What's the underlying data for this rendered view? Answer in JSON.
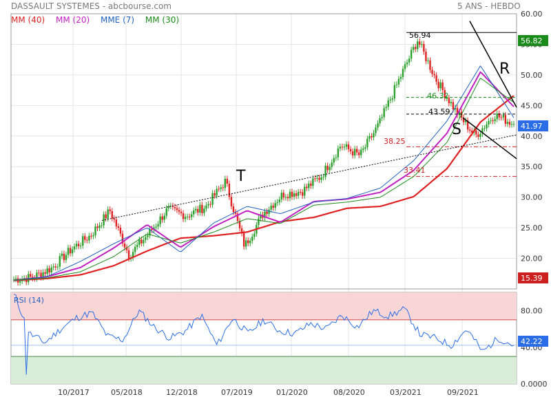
{
  "header": {
    "title": "DASSAULT SYSTEMES - abcbourse.com",
    "period": "5 ANS - HEBDO"
  },
  "legend": [
    {
      "label": "MM (40)",
      "color": "#e02020"
    },
    {
      "label": "MM (20)",
      "color": "#c020c0"
    },
    {
      "label": "MME (7)",
      "color": "#1f5fbf"
    },
    {
      "label": "MM (30)",
      "color": "#1a8a1a"
    }
  ],
  "colors": {
    "up": "#2ca02c",
    "down": "#e02020",
    "price_badge": "#2a6de6",
    "trend": "#000000",
    "rsi_line": "#2a6de6",
    "overbought_zone": "#f9d6d6",
    "oversold_zone": "#d8ecd8"
  },
  "chart_data": [
    {
      "type": "candlestick",
      "title": "DASSAULT SYSTEMES",
      "ylim": [
        15,
        60
      ],
      "y_ticks": [
        "20.00",
        "25.00",
        "30.00",
        "35.00",
        "40.00",
        "45.00",
        "50.00",
        "55.00",
        "60.00"
      ],
      "x_ticks": [
        "10/2017",
        "05/2018",
        "12/2018",
        "07/2019",
        "01/2020",
        "08/2020",
        "03/2021",
        "09/2021"
      ],
      "series": [
        {
          "name": "MM (40)",
          "values": [
            16.4,
            16.7,
            17.3,
            18.8,
            21.2,
            23.3,
            23.7,
            24.3,
            26.0,
            26.7,
            28.2,
            28.5,
            30.1,
            34.7,
            42.3,
            46.6
          ]
        },
        {
          "name": "MM (20)",
          "values": [
            16.4,
            17.0,
            18.5,
            21.7,
            25.5,
            21.8,
            25.2,
            27.8,
            25.9,
            29.3,
            29.7,
            30.8,
            34.4,
            40.5,
            50.5,
            44.8
          ]
        },
        {
          "name": "MME (7)",
          "values": [
            16.4,
            17.0,
            19.5,
            22.4,
            25.0,
            21.0,
            25.8,
            28.5,
            27.3,
            29.2,
            29.8,
            31.5,
            36.0,
            42.5,
            51.5,
            43.0
          ]
        },
        {
          "name": "MM (30)",
          "values": [
            16.4,
            16.8,
            17.8,
            20.3,
            24.0,
            22.5,
            24.3,
            26.5,
            25.7,
            28.7,
            29.2,
            30.0,
            33.4,
            39.0,
            49.5,
            45.5
          ]
        }
      ],
      "price_path": [
        16.6,
        16.9,
        18.5,
        21.5,
        23.8,
        27.8,
        20.5,
        24.0,
        28.0,
        27.0,
        28.5,
        32.6,
        22.0,
        27.5,
        30.5,
        31.0,
        33.5,
        38.5,
        36.8,
        42.0,
        49.0,
        55.7,
        49.0,
        44.0,
        40.0,
        43.5,
        41.97
      ],
      "annotations": [
        {
          "text": "56.94",
          "value": 56.94
        },
        {
          "text": "46.32",
          "value": 46.32
        },
        {
          "text": "43.59",
          "value": 43.59
        },
        {
          "text": "38.25",
          "value": 38.25
        },
        {
          "text": "33.41",
          "value": 33.41
        },
        {
          "text": "T"
        },
        {
          "text": "R"
        },
        {
          "text": "S"
        }
      ],
      "badges": [
        {
          "text": "56.82",
          "value": 56.82,
          "color": "#1a8a1a"
        },
        {
          "text": "41.97",
          "value": 41.97,
          "color": "#2a6de6"
        },
        {
          "text": "15.39",
          "value": 15.39,
          "color": "#cc2020"
        }
      ]
    },
    {
      "type": "line",
      "title": "RSI (14)",
      "ylim": [
        0,
        100
      ],
      "y_ticks": [
        "0.0000",
        "40.00",
        "80.00"
      ],
      "series": [
        {
          "name": "RSI (14)",
          "values": [
            100,
            55,
            45,
            60,
            72,
            78,
            52,
            48,
            80,
            62,
            50,
            58,
            75,
            42,
            72,
            55,
            70,
            58,
            55,
            66,
            60,
            75,
            62,
            80,
            74,
            82,
            54,
            50,
            42,
            60,
            35,
            50,
            42.22
          ]
        }
      ],
      "badge": {
        "text": "42.22",
        "value": 42.22
      }
    }
  ]
}
